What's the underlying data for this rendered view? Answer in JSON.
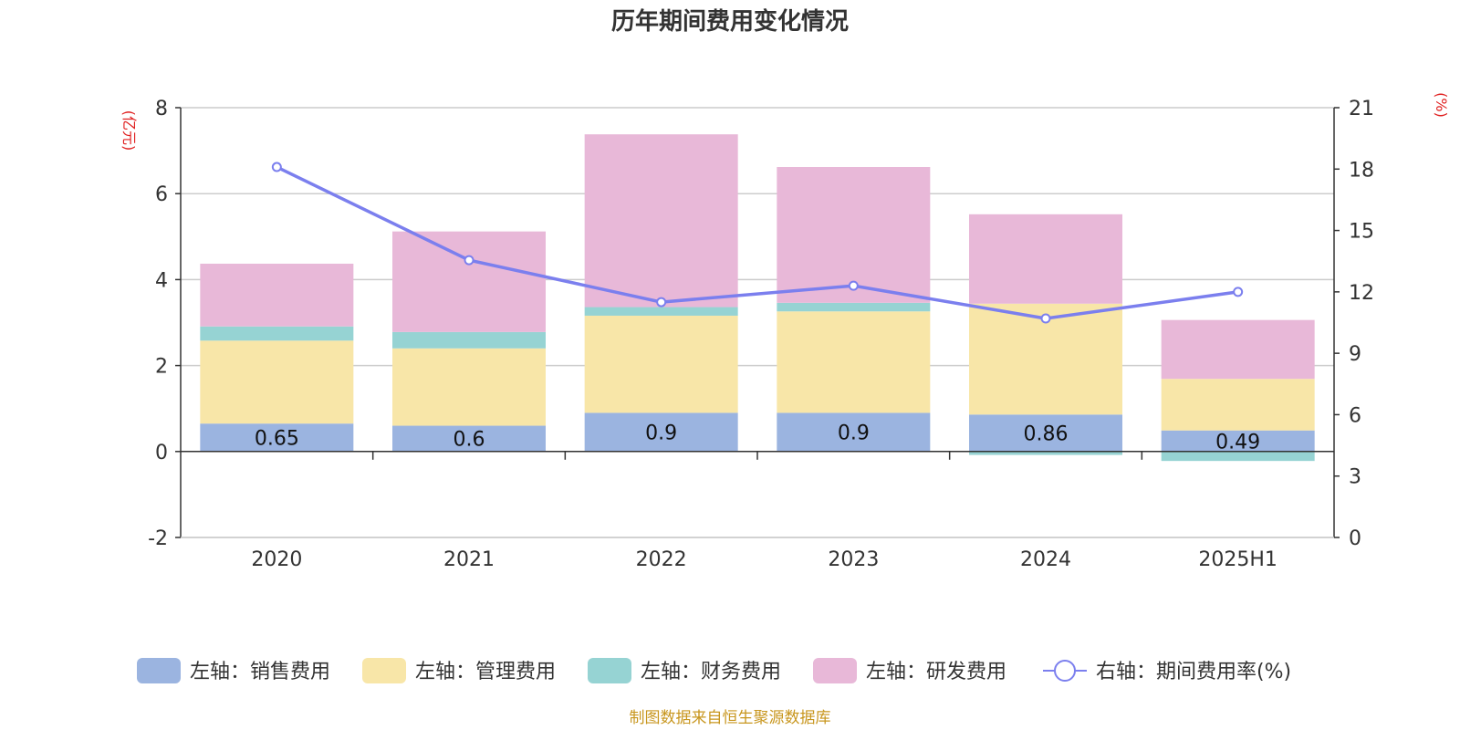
{
  "chart_data": {
    "type": "bar",
    "title": "历年期间费用变化情况",
    "categories": [
      "2020",
      "2021",
      "2022",
      "2023",
      "2024",
      "2025H1"
    ],
    "y_left": {
      "unit": "(亿元)",
      "min": -2,
      "max": 8,
      "ticks": [
        "-2",
        "0",
        "2",
        "4",
        "6",
        "8"
      ]
    },
    "y_right": {
      "unit": "(%)",
      "min": 0,
      "max": 21,
      "ticks": [
        "0",
        "3",
        "6",
        "9",
        "12",
        "15",
        "18",
        "21"
      ]
    },
    "grid": true,
    "legend_position": "bottom",
    "series": [
      {
        "name": "左轴：销售费用",
        "axis": "left",
        "kind": "bar",
        "color": "#9bb4e0",
        "values": [
          0.65,
          0.6,
          0.9,
          0.9,
          0.86,
          0.49
        ],
        "labels": [
          "0.65",
          "0.6",
          "0.9",
          "0.9",
          "0.86",
          "0.49"
        ]
      },
      {
        "name": "左轴：管理费用",
        "axis": "left",
        "kind": "bar",
        "color": "#f8e6a8",
        "values": [
          1.93,
          1.8,
          2.26,
          2.36,
          2.58,
          1.2
        ]
      },
      {
        "name": "左轴：财务费用",
        "axis": "left",
        "kind": "bar",
        "color": "#96d3d3",
        "values": [
          0.33,
          0.38,
          0.2,
          0.2,
          -0.08,
          -0.22
        ]
      },
      {
        "name": "左轴：研发费用",
        "axis": "left",
        "kind": "bar",
        "color": "#e8b8d8",
        "values": [
          1.46,
          2.34,
          4.02,
          3.16,
          2.08,
          1.37
        ]
      },
      {
        "name": "右轴：期间费用率(%)",
        "axis": "right",
        "kind": "line",
        "color": "#7b7fee",
        "values": [
          18.1,
          13.55,
          11.5,
          12.3,
          10.7,
          12.0
        ]
      }
    ],
    "source": "制图数据来自恒生聚源数据库"
  }
}
